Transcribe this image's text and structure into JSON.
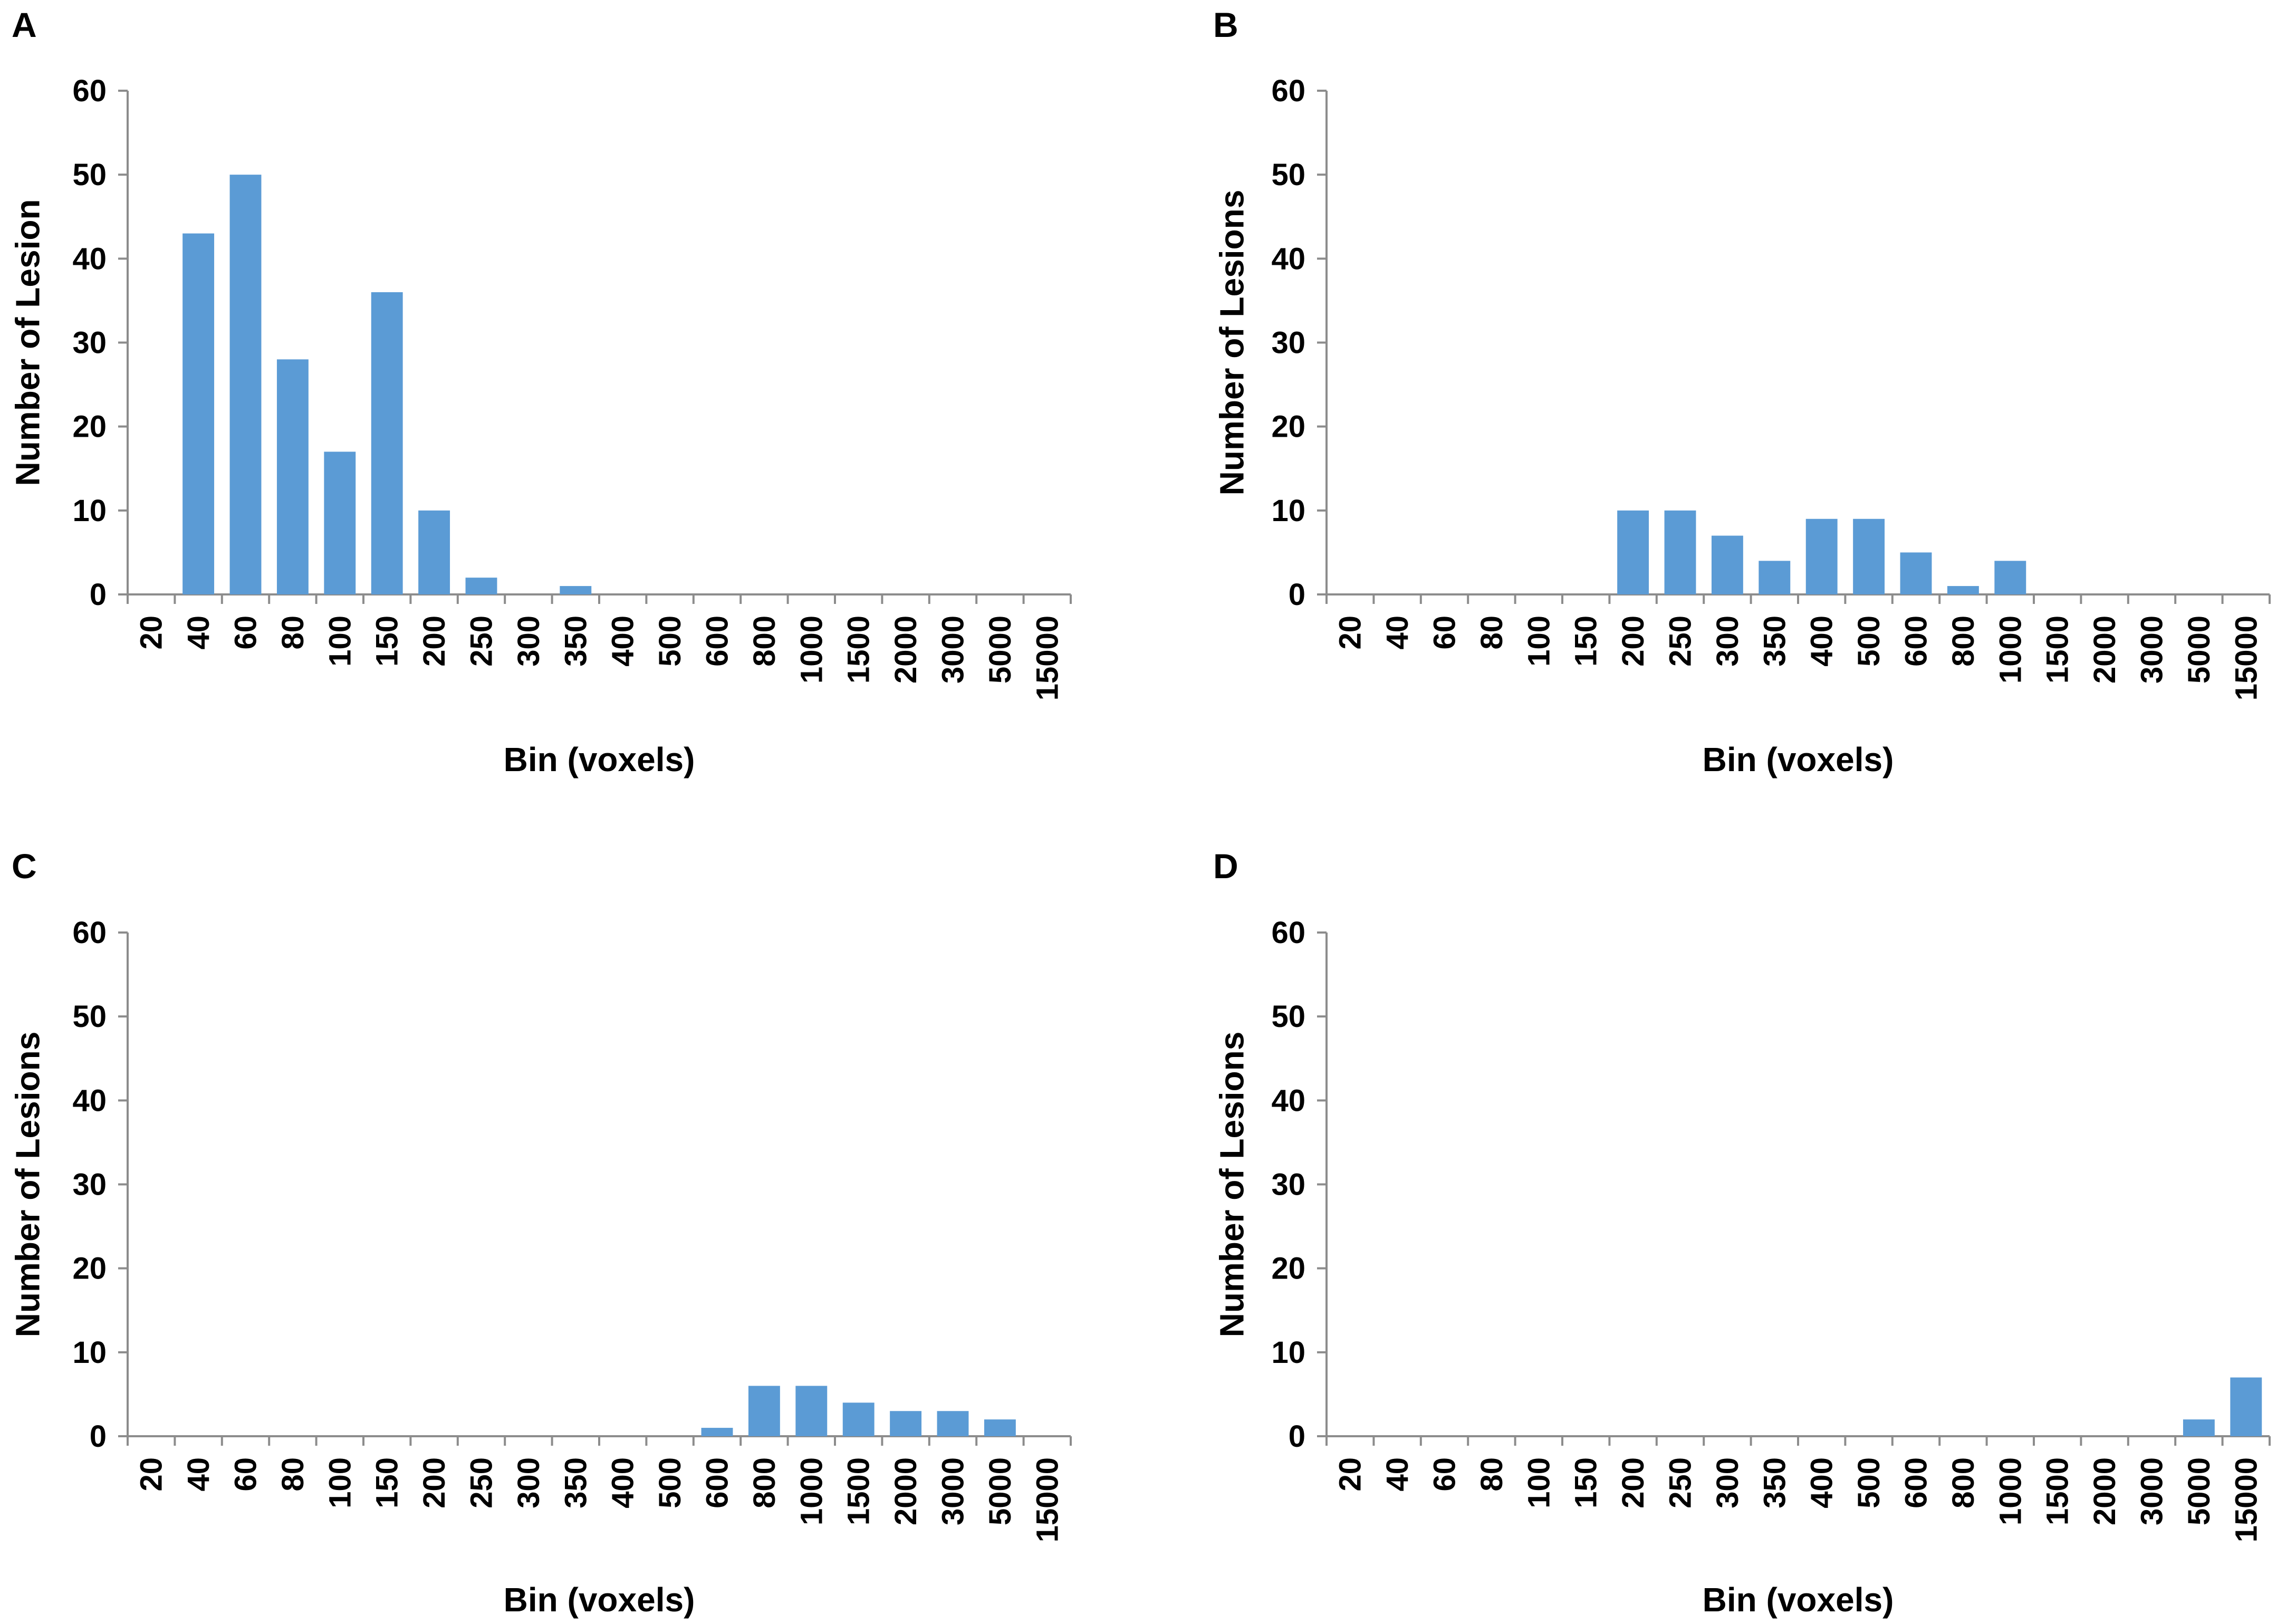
{
  "figure": {
    "background": "#ffffff",
    "bar_color": "#5b9bd5",
    "axis_color": "#8c8c8c"
  },
  "chart_data": [
    {
      "type": "bar",
      "panel": "A",
      "title": "",
      "xlabel": "Bin (voxels)",
      "ylabel": "Number of Lesion",
      "ylim": [
        0,
        60
      ],
      "yticks": [
        "0",
        "10",
        "20",
        "30",
        "40",
        "50",
        "60"
      ],
      "categories": [
        "20",
        "40",
        "60",
        "80",
        "100",
        "150",
        "200",
        "250",
        "300",
        "350",
        "400",
        "500",
        "600",
        "800",
        "1000",
        "1500",
        "2000",
        "3000",
        "5000",
        "15000"
      ],
      "values": [
        0,
        43,
        50,
        28,
        17,
        36,
        10,
        2,
        0,
        1,
        0,
        0,
        0,
        0,
        0,
        0,
        0,
        0,
        0,
        0
      ],
      "grid": false,
      "legend": "none"
    },
    {
      "type": "bar",
      "panel": "B",
      "title": "",
      "xlabel": "Bin (voxels)",
      "ylabel": "Number of Lesions",
      "ylim": [
        0,
        60
      ],
      "yticks": [
        "0",
        "10",
        "20",
        "30",
        "40",
        "50",
        "60"
      ],
      "categories": [
        "20",
        "40",
        "60",
        "80",
        "100",
        "150",
        "200",
        "250",
        "300",
        "350",
        "400",
        "500",
        "600",
        "800",
        "1000",
        "1500",
        "2000",
        "3000",
        "5000",
        "15000"
      ],
      "values": [
        0,
        0,
        0,
        0,
        0,
        0,
        10,
        10,
        7,
        4,
        9,
        9,
        5,
        1,
        4,
        0,
        0,
        0,
        0,
        0
      ],
      "grid": false,
      "legend": "none"
    },
    {
      "type": "bar",
      "panel": "C",
      "title": "",
      "xlabel": "Bin (voxels)",
      "ylabel": "Number of Lesions",
      "ylim": [
        0,
        60
      ],
      "yticks": [
        "0",
        "10",
        "20",
        "30",
        "40",
        "50",
        "60"
      ],
      "categories": [
        "20",
        "40",
        "60",
        "80",
        "100",
        "150",
        "200",
        "250",
        "300",
        "350",
        "400",
        "500",
        "600",
        "800",
        "1000",
        "1500",
        "2000",
        "3000",
        "5000",
        "15000"
      ],
      "values": [
        0,
        0,
        0,
        0,
        0,
        0,
        0,
        0,
        0,
        0,
        0,
        0,
        1,
        6,
        6,
        4,
        3,
        3,
        2,
        0
      ],
      "grid": false,
      "legend": "none"
    },
    {
      "type": "bar",
      "panel": "D",
      "title": "",
      "xlabel": "Bin (voxels)",
      "ylabel": "Number of Lesions",
      "ylim": [
        0,
        60
      ],
      "yticks": [
        "0",
        "10",
        "20",
        "30",
        "40",
        "50",
        "60"
      ],
      "categories": [
        "20",
        "40",
        "60",
        "80",
        "100",
        "150",
        "200",
        "250",
        "300",
        "350",
        "400",
        "500",
        "600",
        "800",
        "1000",
        "1500",
        "2000",
        "3000",
        "5000",
        "15000"
      ],
      "values": [
        0,
        0,
        0,
        0,
        0,
        0,
        0,
        0,
        0,
        0,
        0,
        0,
        0,
        0,
        0,
        0,
        0,
        0,
        2,
        7
      ],
      "grid": false,
      "legend": "none"
    }
  ]
}
